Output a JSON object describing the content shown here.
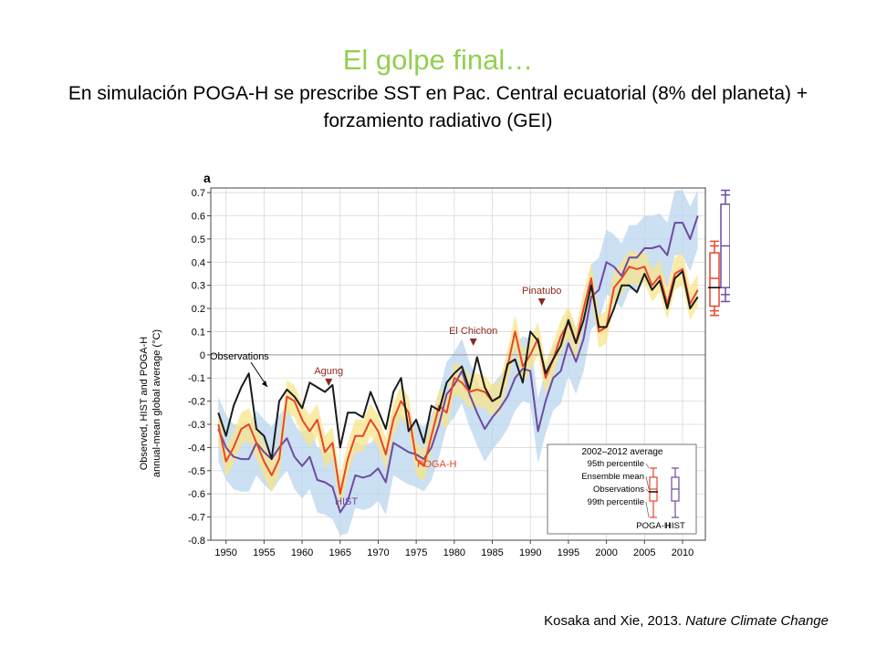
{
  "slide": {
    "title": "El golpe final…",
    "subtitle": "En simulación POGA-H se prescribe SST en Pac. Central ecuatorial (8% del planeta) + forzamiento radiativo (GEI)",
    "credit_authors": "Kosaka and Xie, 2013. ",
    "credit_journal": "Nature Climate Change"
  },
  "chart_data": {
    "type": "line",
    "panel_label": "a",
    "ylabel_line1": "Observed, HIST and POGA-H",
    "ylabel_line2": "annual-mean global average (°C)",
    "xlim": [
      1948,
      2013
    ],
    "ylim": [
      -0.8,
      0.72
    ],
    "xticks": [
      1950,
      1955,
      1960,
      1965,
      1970,
      1975,
      1980,
      1985,
      1990,
      1995,
      2000,
      2005,
      2010
    ],
    "yticks": [
      -0.8,
      -0.7,
      -0.6,
      -0.5,
      -0.4,
      -0.3,
      -0.2,
      -0.1,
      0,
      0.1,
      0.2,
      0.3,
      0.4,
      0.5,
      0.6,
      0.7
    ],
    "grid": true,
    "colors": {
      "observations": "#1a1a1a",
      "poga": "#e8452c",
      "hist": "#6e4aa3",
      "poga_band": "#f8e48a",
      "hist_band": "#b9d6ee",
      "annotation": "#8b2a20"
    },
    "x": [
      1949,
      1950,
      1951,
      1952,
      1953,
      1954,
      1955,
      1956,
      1957,
      1958,
      1959,
      1960,
      1961,
      1962,
      1963,
      1964,
      1965,
      1966,
      1967,
      1968,
      1969,
      1970,
      1971,
      1972,
      1973,
      1974,
      1975,
      1976,
      1977,
      1978,
      1979,
      1980,
      1981,
      1982,
      1983,
      1984,
      1985,
      1986,
      1987,
      1988,
      1989,
      1990,
      1991,
      1992,
      1993,
      1994,
      1995,
      1996,
      1997,
      1998,
      1999,
      2000,
      2001,
      2002,
      2003,
      2004,
      2005,
      2006,
      2007,
      2008,
      2009,
      2010,
      2011,
      2012
    ],
    "series": [
      {
        "name": "Observations",
        "key": "obs",
        "values": [
          -0.25,
          -0.35,
          -0.22,
          -0.14,
          -0.08,
          -0.32,
          -0.35,
          -0.45,
          -0.2,
          -0.15,
          -0.18,
          -0.23,
          -0.12,
          -0.14,
          -0.16,
          -0.13,
          -0.4,
          -0.25,
          -0.25,
          -0.27,
          -0.16,
          -0.24,
          -0.32,
          -0.16,
          -0.1,
          -0.33,
          -0.28,
          -0.38,
          -0.22,
          -0.24,
          -0.12,
          -0.08,
          -0.05,
          -0.15,
          -0.01,
          -0.14,
          -0.2,
          -0.18,
          -0.04,
          -0.02,
          -0.12,
          0.1,
          0.06,
          -0.08,
          -0.02,
          0.04,
          0.15,
          0.05,
          0.15,
          0.3,
          0.12,
          0.12,
          0.2,
          0.3,
          0.3,
          0.27,
          0.35,
          0.28,
          0.32,
          0.2,
          0.33,
          0.36,
          0.2,
          0.25
        ]
      },
      {
        "name": "POGA-H",
        "key": "poga",
        "values": [
          -0.3,
          -0.46,
          -0.4,
          -0.32,
          -0.3,
          -0.38,
          -0.46,
          -0.52,
          -0.45,
          -0.18,
          -0.2,
          -0.28,
          -0.33,
          -0.28,
          -0.42,
          -0.38,
          -0.6,
          -0.45,
          -0.35,
          -0.35,
          -0.28,
          -0.33,
          -0.43,
          -0.28,
          -0.2,
          -0.25,
          -0.45,
          -0.48,
          -0.35,
          -0.22,
          -0.25,
          -0.1,
          -0.12,
          -0.16,
          -0.15,
          -0.16,
          -0.2,
          -0.18,
          -0.05,
          0.1,
          -0.05,
          0.0,
          0.07,
          -0.1,
          -0.02,
          0.08,
          0.14,
          0.05,
          0.2,
          0.33,
          0.1,
          0.12,
          0.29,
          0.33,
          0.38,
          0.37,
          0.38,
          0.3,
          0.34,
          0.22,
          0.35,
          0.37,
          0.22,
          0.28
        ]
      },
      {
        "name": "HIST",
        "key": "hist",
        "values": [
          -0.32,
          -0.4,
          -0.44,
          -0.45,
          -0.45,
          -0.38,
          -0.42,
          -0.45,
          -0.4,
          -0.36,
          -0.44,
          -0.48,
          -0.44,
          -0.54,
          -0.55,
          -0.57,
          -0.68,
          -0.63,
          -0.52,
          -0.53,
          -0.52,
          -0.49,
          -0.55,
          -0.38,
          -0.4,
          -0.42,
          -0.43,
          -0.45,
          -0.4,
          -0.3,
          -0.17,
          -0.13,
          -0.07,
          -0.17,
          -0.25,
          -0.32,
          -0.27,
          -0.23,
          -0.18,
          -0.1,
          -0.06,
          -0.07,
          -0.33,
          -0.2,
          -0.1,
          -0.07,
          0.05,
          -0.03,
          0.07,
          0.25,
          0.28,
          0.4,
          0.38,
          0.34,
          0.42,
          0.42,
          0.46,
          0.46,
          0.47,
          0.43,
          0.57,
          0.57,
          0.5,
          0.6
        ]
      }
    ],
    "poga_band": {
      "upper": [
        -0.22,
        -0.4,
        -0.33,
        -0.25,
        -0.23,
        -0.31,
        -0.38,
        -0.45,
        -0.38,
        -0.11,
        -0.13,
        -0.21,
        -0.26,
        -0.21,
        -0.35,
        -0.31,
        -0.53,
        -0.38,
        -0.28,
        -0.28,
        -0.21,
        -0.26,
        -0.36,
        -0.21,
        -0.13,
        -0.18,
        -0.38,
        -0.41,
        -0.28,
        -0.15,
        -0.18,
        -0.03,
        -0.05,
        -0.09,
        -0.08,
        -0.09,
        -0.13,
        -0.11,
        0.02,
        0.17,
        0.02,
        0.07,
        0.14,
        -0.03,
        0.05,
        0.15,
        0.21,
        0.12,
        0.27,
        0.4,
        0.17,
        0.19,
        0.36,
        0.4,
        0.45,
        0.44,
        0.45,
        0.37,
        0.41,
        0.29,
        0.42,
        0.44,
        0.29,
        0.35
      ],
      "lower": [
        -0.37,
        -0.53,
        -0.47,
        -0.39,
        -0.37,
        -0.45,
        -0.53,
        -0.59,
        -0.52,
        -0.25,
        -0.27,
        -0.35,
        -0.4,
        -0.35,
        -0.49,
        -0.45,
        -0.67,
        -0.52,
        -0.42,
        -0.42,
        -0.35,
        -0.4,
        -0.5,
        -0.35,
        -0.27,
        -0.32,
        -0.52,
        -0.55,
        -0.42,
        -0.29,
        -0.32,
        -0.17,
        -0.19,
        -0.23,
        -0.22,
        -0.23,
        -0.27,
        -0.25,
        -0.12,
        0.03,
        -0.12,
        -0.07,
        0.0,
        -0.17,
        -0.09,
        0.01,
        0.07,
        -0.02,
        0.13,
        0.26,
        0.03,
        0.05,
        0.22,
        0.26,
        0.31,
        0.3,
        0.31,
        0.23,
        0.27,
        0.15,
        0.28,
        0.3,
        0.15,
        0.21
      ]
    },
    "hist_band": {
      "upper": [
        -0.18,
        -0.26,
        -0.3,
        -0.31,
        -0.31,
        -0.24,
        -0.28,
        -0.31,
        -0.26,
        -0.22,
        -0.3,
        -0.34,
        -0.3,
        -0.4,
        -0.41,
        -0.43,
        -0.54,
        -0.49,
        -0.38,
        -0.39,
        -0.38,
        -0.35,
        -0.41,
        -0.24,
        -0.26,
        -0.28,
        -0.29,
        -0.31,
        -0.26,
        -0.16,
        -0.03,
        0.01,
        0.07,
        -0.03,
        -0.11,
        -0.18,
        -0.13,
        -0.09,
        -0.04,
        0.04,
        0.08,
        0.07,
        -0.19,
        -0.06,
        0.04,
        0.07,
        0.19,
        0.11,
        0.21,
        0.39,
        0.42,
        0.54,
        0.52,
        0.48,
        0.56,
        0.56,
        0.6,
        0.6,
        0.61,
        0.57,
        0.71,
        0.71,
        0.64,
        0.71
      ],
      "lower": [
        -0.46,
        -0.54,
        -0.58,
        -0.59,
        -0.59,
        -0.52,
        -0.56,
        -0.59,
        -0.54,
        -0.5,
        -0.58,
        -0.62,
        -0.58,
        -0.68,
        -0.69,
        -0.71,
        -0.78,
        -0.77,
        -0.66,
        -0.67,
        -0.66,
        -0.63,
        -0.69,
        -0.52,
        -0.54,
        -0.56,
        -0.57,
        -0.59,
        -0.54,
        -0.44,
        -0.31,
        -0.27,
        -0.21,
        -0.31,
        -0.39,
        -0.46,
        -0.41,
        -0.37,
        -0.32,
        -0.24,
        -0.2,
        -0.21,
        -0.47,
        -0.34,
        -0.24,
        -0.21,
        -0.09,
        -0.17,
        -0.07,
        0.11,
        0.14,
        0.26,
        0.24,
        0.2,
        0.28,
        0.28,
        0.32,
        0.32,
        0.33,
        0.29,
        0.43,
        0.43,
        0.36,
        0.46
      ]
    },
    "boxplots_2002_2012": [
      {
        "name": "POGA-H",
        "min": 0.17,
        "p05": 0.19,
        "q1": 0.21,
        "mean": 0.33,
        "q3": 0.44,
        "p95": 0.47,
        "max": 0.49,
        "obs": 0.29
      },
      {
        "name": "HIST",
        "min": 0.23,
        "p05": 0.26,
        "q1": 0.29,
        "mean": 0.47,
        "q3": 0.65,
        "p95": 0.69,
        "max": 0.71
      }
    ],
    "annotations": {
      "observations_label": "Observations",
      "agung": "Agung",
      "elchichon": "El Chichon",
      "pinatubo": "Pinatubo",
      "poga_label": "POGA-H",
      "hist_label": "HIST"
    },
    "volcano_years": {
      "agung": 1963.5,
      "elchichon": 1982.5,
      "pinatubo": 1991.5
    },
    "legend": {
      "title": "2002–2012 average",
      "p95": "95th percentile",
      "ensemble_mean": "Ensemble mean",
      "observations": "Observations",
      "p99": "99th percentile",
      "poga": "POGA-H",
      "hist": "HIST"
    }
  }
}
